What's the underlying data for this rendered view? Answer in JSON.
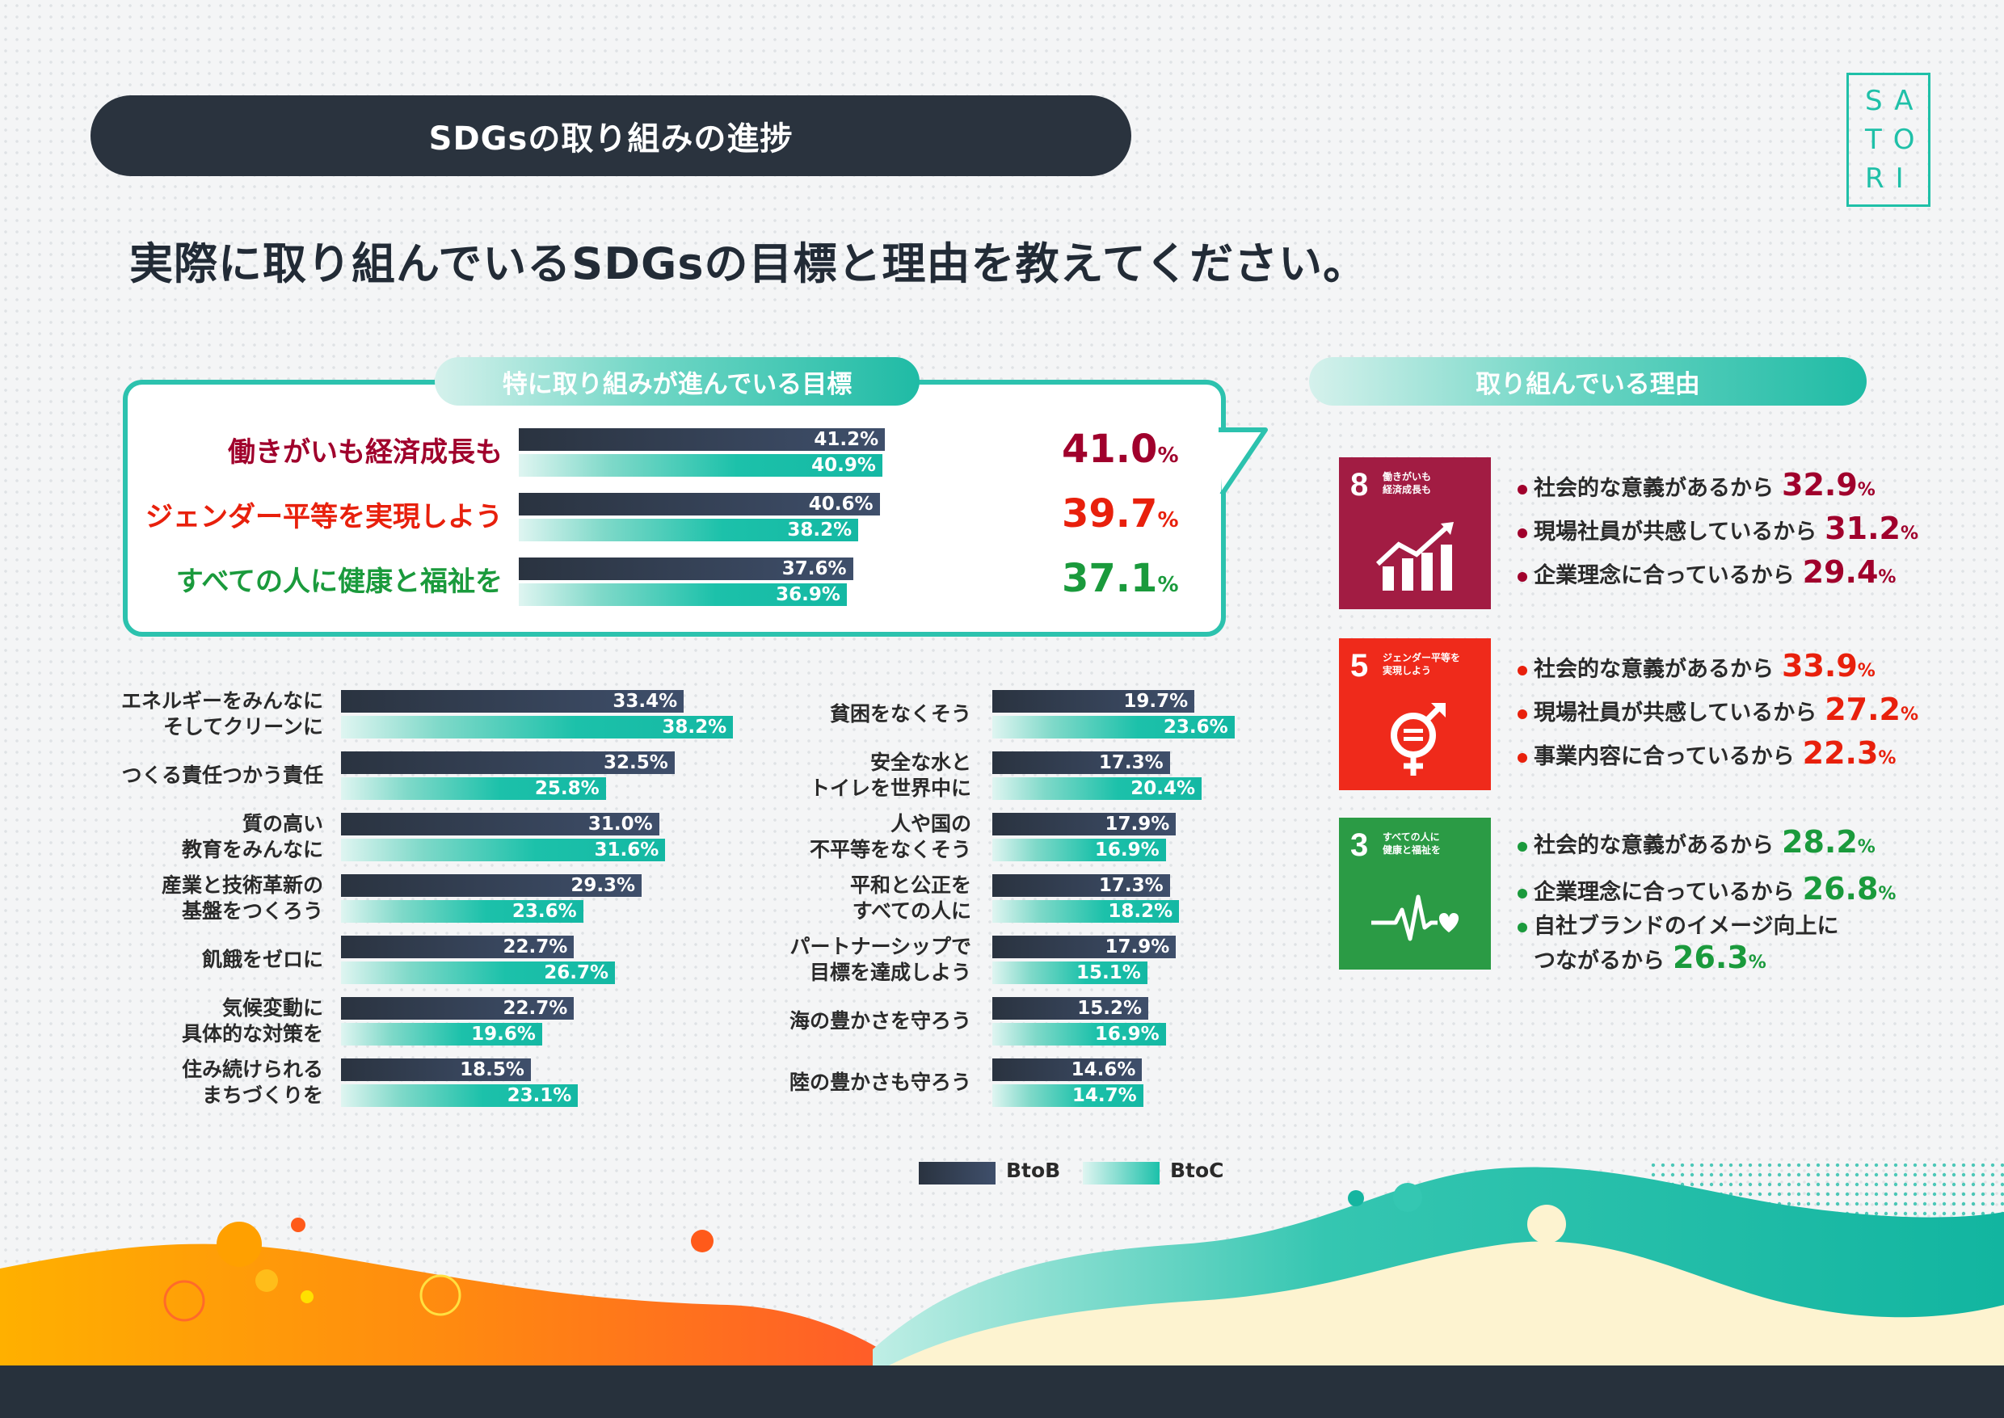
{
  "header": {
    "title": "SDGsの取り組みの進捗"
  },
  "logo": {
    "line1": "SA",
    "line2": "TO",
    "line3": "RI"
  },
  "question": "実際に取り組んでいるSDGsの目標と理由を教えてください。",
  "top_section": {
    "title": "特に取り組みが進んでいる目標"
  },
  "reason_section": {
    "title": "取り組んでいる理由"
  },
  "colors": {
    "accent": "#1fbba5",
    "dark": "#2a333e",
    "red_dark": "#a0002c",
    "red": "#e8200c",
    "green": "#1a9a3c"
  },
  "chart_data": [
    {
      "type": "bar",
      "title": "特に取り組みが進んでいる目標",
      "categories": [
        "働きがいも経済成長も",
        "ジェンダー平等を実現しよう",
        "すべての人に健康と福祉を"
      ],
      "series": [
        {
          "name": "BtoB",
          "values": [
            41.2,
            40.6,
            37.6
          ]
        },
        {
          "name": "BtoC",
          "values": [
            40.9,
            38.2,
            36.9
          ]
        }
      ],
      "totals": [
        41.0,
        39.7,
        37.1
      ],
      "labels": [
        "41.2%",
        "40.9%",
        "40.6%",
        "38.2%",
        "37.6%",
        "36.9%"
      ],
      "total_labels": [
        "41.0",
        "39.7",
        "37.1"
      ],
      "total_unit": "%",
      "category_colors": [
        "#a0002c",
        "#e8200c",
        "#1a9a3c"
      ]
    },
    {
      "type": "bar",
      "categories": [
        "エネルギーをみんなに\nそしてクリーンに",
        "つくる責任つかう責任",
        "質の高い\n教育をみんなに",
        "産業と技術革新の\n基盤をつくろう",
        "飢餓をゼロに",
        "気候変動に\n具体的な対策を",
        "住み続けられる\nまちづくりを"
      ],
      "series": [
        {
          "name": "BtoB",
          "values": [
            33.4,
            32.5,
            31.0,
            29.3,
            22.7,
            22.7,
            18.5
          ]
        },
        {
          "name": "BtoC",
          "values": [
            38.2,
            25.8,
            31.6,
            23.6,
            26.7,
            19.6,
            23.1
          ]
        }
      ]
    },
    {
      "type": "bar",
      "categories": [
        "貧困をなくそう",
        "安全な水と\nトイレを世界中に",
        "人や国の\n不平等をなくそう",
        "平和と公正を\nすべての人に",
        "パートナーシップで\n目標を達成しよう",
        "海の豊かさを守ろう",
        "陸の豊かさも守ろう"
      ],
      "series": [
        {
          "name": "BtoB",
          "values": [
            19.7,
            17.3,
            17.9,
            17.3,
            17.9,
            15.2,
            14.6
          ]
        },
        {
          "name": "BtoC",
          "values": [
            23.6,
            20.4,
            16.9,
            18.2,
            15.1,
            16.9,
            14.7
          ]
        }
      ]
    }
  ],
  "legend": {
    "btob": "BtoB",
    "btoc": "BtoC"
  },
  "reasons": [
    {
      "goal_number": "8",
      "goal_title": "働きがいも\n経済成長も",
      "card_color": "#a21c43",
      "pct_color": "#a0002c",
      "items": [
        {
          "label": "社会的な意義があるから",
          "value": "32.9"
        },
        {
          "label": "現場社員が共感しているから",
          "value": "31.2"
        },
        {
          "label": "企業理念に合っているから",
          "value": "29.4"
        }
      ]
    },
    {
      "goal_number": "5",
      "goal_title": "ジェンダー平等を\n実現しよう",
      "card_color": "#ef2a1b",
      "pct_color": "#e8200c",
      "items": [
        {
          "label": "社会的な意義があるから",
          "value": "33.9"
        },
        {
          "label": "現場社員が共感しているから",
          "value": "27.2"
        },
        {
          "label": "事業内容に合っているから",
          "value": "22.3"
        }
      ]
    },
    {
      "goal_number": "3",
      "goal_title": "すべての人に\n健康と福祉を",
      "card_color": "#2b9b45",
      "pct_color": "#1a9a3c",
      "items": [
        {
          "label": "社会的な意義があるから",
          "value": "28.2"
        },
        {
          "label": "企業理念に合っているから",
          "value": "26.8"
        },
        {
          "label": "自社ブランドのイメージ向上に\nつながるから",
          "value": "26.3"
        }
      ]
    }
  ],
  "pct_unit": "%"
}
